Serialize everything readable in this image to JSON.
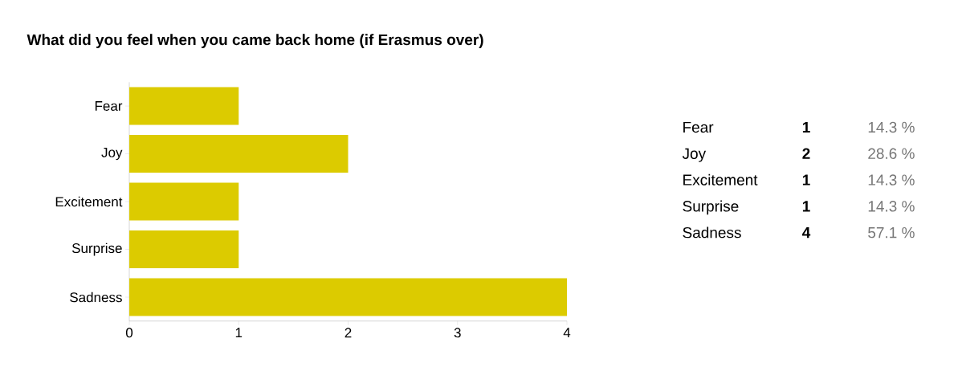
{
  "chart_data": {
    "type": "bar",
    "orientation": "horizontal",
    "title": "What did you feel when you came back home (if Erasmus over)",
    "categories": [
      "Fear",
      "Joy",
      "Excitement",
      "Surprise",
      "Sadness"
    ],
    "values": [
      1,
      2,
      1,
      1,
      4
    ],
    "color": "#dccb00",
    "xlim": [
      0,
      4
    ],
    "xticks": [
      0,
      1,
      2,
      3,
      4
    ],
    "annotations": [
      "1",
      "14.3 %",
      "2",
      "28.6 %",
      "1",
      "14.3 %",
      "1",
      "14.3 %",
      "4",
      "57.1 %"
    ]
  }
}
